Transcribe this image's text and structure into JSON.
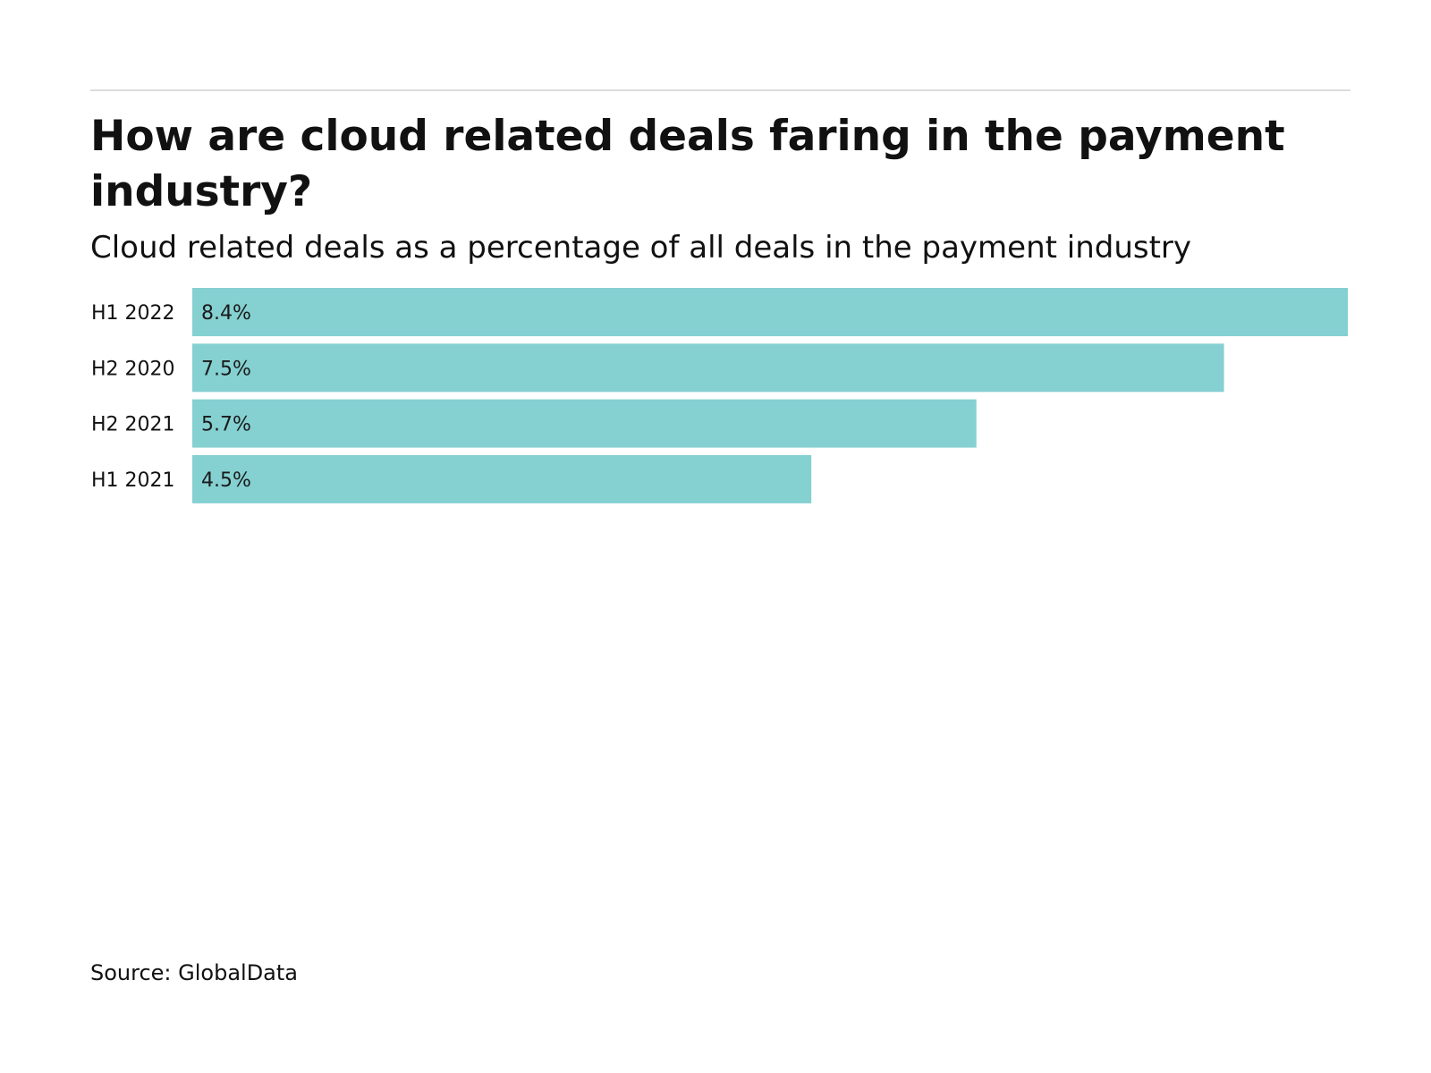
{
  "chart_data": {
    "type": "bar",
    "orientation": "horizontal",
    "title": "How are cloud related deals faring in the payment industry?",
    "subtitle": "Cloud related deals as a percentage of all deals in the payment industry",
    "categories": [
      "H1 2022",
      "H2 2020",
      "H2 2021",
      "H1 2021"
    ],
    "values": [
      8.4,
      7.5,
      5.7,
      4.5
    ],
    "value_labels": [
      "8.4%",
      "7.5%",
      "5.7%",
      "4.5%"
    ],
    "xlim": [
      0,
      8.4
    ],
    "grid": false,
    "legend": "none",
    "bar_color": "#85d0d1"
  },
  "footer": {
    "source": "Source: GlobalData"
  }
}
